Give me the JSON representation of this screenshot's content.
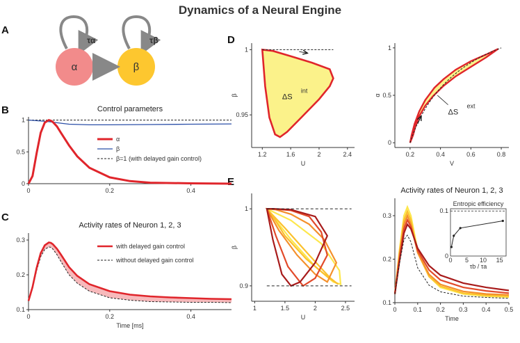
{
  "figure_title": "Dynamics of a Neural Engine",
  "panel_labels": {
    "A": "A",
    "B": "B",
    "C": "C",
    "D": "D",
    "E": "E"
  },
  "diagram_A": {
    "node_alpha": "α",
    "node_beta": "β",
    "tau_alpha": "τα",
    "tau_beta": "τβ",
    "colors": {
      "alpha": "#f28b8b",
      "beta": "#fdc72f",
      "arrow": "#888888"
    }
  },
  "chart_data": [
    {
      "id": "B",
      "type": "line",
      "title": "Control parameters",
      "xlim": [
        0,
        0.5
      ],
      "ylim": [
        0,
        1.05
      ],
      "xticks": [
        "0",
        "0.2",
        "0.4"
      ],
      "yticks": [
        "0",
        "0.5",
        "1"
      ],
      "legend_position": "center-right",
      "series": [
        {
          "name": "α",
          "color": "#e0252b",
          "x": [
            0,
            0.01,
            0.02,
            0.03,
            0.04,
            0.05,
            0.055,
            0.06,
            0.07,
            0.08,
            0.1,
            0.12,
            0.15,
            0.2,
            0.25,
            0.3,
            0.4,
            0.5
          ],
          "y": [
            0,
            0.12,
            0.48,
            0.8,
            0.96,
            1.0,
            0.99,
            0.97,
            0.9,
            0.8,
            0.6,
            0.43,
            0.25,
            0.1,
            0.04,
            0.015,
            0.005,
            0
          ]
        },
        {
          "name": "β",
          "color": "#2b4fa8",
          "x": [
            0,
            0.03,
            0.05,
            0.08,
            0.1,
            0.15,
            0.2,
            0.3,
            0.4,
            0.5
          ],
          "y": [
            1.0,
            0.985,
            0.975,
            0.95,
            0.935,
            0.925,
            0.925,
            0.93,
            0.935,
            0.94
          ]
        },
        {
          "name": "β=1 (with delayed gain control)",
          "color": "#222222",
          "x": [
            0,
            0.5
          ],
          "y": [
            1.0,
            1.0
          ]
        }
      ]
    },
    {
      "id": "C",
      "type": "line",
      "title": "Activity rates of Neuron 1, 2, 3",
      "xlabel": "Time [ms]",
      "xlim": [
        0,
        0.5
      ],
      "ylim": [
        0.1,
        0.32
      ],
      "xticks": [
        "0",
        "0.2",
        "0.4"
      ],
      "yticks": [
        "0.1",
        "0.2",
        "0.3"
      ],
      "series": [
        {
          "name": "with delayed gain control",
          "color": "#e0252b",
          "x": [
            0,
            0.01,
            0.02,
            0.03,
            0.04,
            0.05,
            0.055,
            0.06,
            0.07,
            0.08,
            0.1,
            0.12,
            0.15,
            0.2,
            0.25,
            0.3,
            0.35,
            0.4,
            0.45,
            0.5
          ],
          "y": [
            0.125,
            0.165,
            0.22,
            0.262,
            0.285,
            0.293,
            0.292,
            0.288,
            0.275,
            0.258,
            0.222,
            0.197,
            0.173,
            0.153,
            0.143,
            0.138,
            0.135,
            0.133,
            0.131,
            0.13
          ]
        },
        {
          "name": "without delayed gain control",
          "color": "#222222",
          "x": [
            0,
            0.01,
            0.02,
            0.03,
            0.04,
            0.05,
            0.055,
            0.06,
            0.07,
            0.08,
            0.1,
            0.12,
            0.15,
            0.2,
            0.25,
            0.3,
            0.35,
            0.4,
            0.45,
            0.5
          ],
          "y": [
            0.125,
            0.16,
            0.212,
            0.252,
            0.273,
            0.28,
            0.279,
            0.274,
            0.258,
            0.238,
            0.2,
            0.176,
            0.153,
            0.134,
            0.127,
            0.123,
            0.122,
            0.121,
            0.121,
            0.12
          ]
        }
      ]
    },
    {
      "id": "D-left",
      "type": "line",
      "xlabel": "U",
      "ylabel": "β",
      "xlim": [
        1.05,
        2.5
      ],
      "ylim": [
        0.925,
        1.005
      ],
      "xticks": [
        "1.2",
        "1.6",
        "2",
        "2.4"
      ],
      "yticks": [
        "0.95",
        "1"
      ],
      "annotation": "ΔS",
      "annotation_sup": "int",
      "series": [
        {
          "name": "cycle",
          "color": "#e0252b",
          "x": [
            1.2,
            1.35,
            1.6,
            1.9,
            2.15,
            2.2,
            2.15,
            2.0,
            1.75,
            1.55,
            1.45,
            1.38,
            1.3,
            1.24,
            1.2
          ],
          "y": [
            1.0,
            0.999,
            0.995,
            0.99,
            0.985,
            0.978,
            0.972,
            0.962,
            0.948,
            0.937,
            0.933,
            0.935,
            0.948,
            0.972,
            1.0
          ]
        },
        {
          "name": "β=1",
          "color": "#222222",
          "x": [
            1.2,
            2.2
          ],
          "y": [
            1.0,
            1.0
          ]
        }
      ]
    },
    {
      "id": "D-right",
      "type": "line",
      "xlabel": "V",
      "ylabel": "α",
      "xlim": [
        0.1,
        0.85
      ],
      "ylim": [
        -0.05,
        1.05
      ],
      "xticks": [
        "0.2",
        "0.4",
        "0.6",
        "0.8"
      ],
      "yticks": [
        "0",
        "0.5",
        "1"
      ],
      "annotation": "ΔS",
      "annotation_sup": "ext",
      "series": [
        {
          "name": "upper",
          "color": "#e0252b",
          "x": [
            0.2,
            0.21,
            0.23,
            0.26,
            0.3,
            0.36,
            0.42,
            0.5,
            0.6,
            0.7,
            0.78
          ],
          "y": [
            0.0,
            0.08,
            0.2,
            0.33,
            0.45,
            0.58,
            0.67,
            0.77,
            0.86,
            0.93,
            0.99
          ]
        },
        {
          "name": "lower",
          "color": "#e0252b",
          "x": [
            0.78,
            0.7,
            0.6,
            0.5,
            0.42,
            0.35,
            0.3,
            0.26,
            0.235,
            0.22,
            0.2
          ],
          "y": [
            0.99,
            0.9,
            0.8,
            0.7,
            0.6,
            0.49,
            0.39,
            0.28,
            0.17,
            0.08,
            0.0
          ]
        }
      ]
    },
    {
      "id": "E-left",
      "type": "line",
      "xlabel": "U",
      "ylabel": "β",
      "xlim": [
        0.95,
        2.65
      ],
      "ylim": [
        0.88,
        1.02
      ],
      "xticks": [
        "1",
        "1.5",
        "2",
        "2.5"
      ],
      "yticks": [
        "0.9",
        "1"
      ],
      "series": [
        {
          "name": "c1",
          "color": "#fde74c",
          "x": [
            1.2,
            1.6,
            2.1,
            2.4,
            2.42,
            2.3,
            2.0,
            1.6,
            1.3,
            1.2
          ],
          "y": [
            1.0,
            0.985,
            0.955,
            0.92,
            0.902,
            0.905,
            0.925,
            0.96,
            0.99,
            1.0
          ]
        },
        {
          "name": "c2",
          "color": "#fbc12e",
          "x": [
            1.2,
            1.5,
            1.9,
            2.25,
            2.38,
            2.2,
            1.85,
            1.5,
            1.3,
            1.2
          ],
          "y": [
            1.0,
            0.975,
            0.94,
            0.91,
            0.902,
            0.912,
            0.935,
            0.965,
            0.99,
            1.0
          ]
        },
        {
          "name": "c3",
          "color": "#f4902b",
          "x": [
            1.2,
            1.4,
            1.7,
            2.0,
            2.2,
            2.35,
            2.15,
            1.9,
            1.6,
            1.35,
            1.2
          ],
          "y": [
            1.0,
            0.972,
            0.94,
            0.915,
            0.905,
            0.93,
            0.96,
            0.98,
            0.993,
            0.999,
            1.0
          ]
        },
        {
          "name": "c4",
          "color": "#e24a2a",
          "x": [
            1.2,
            1.35,
            1.55,
            1.8,
            2.0,
            2.2,
            2.1,
            1.9,
            1.6,
            1.3,
            1.2
          ],
          "y": [
            1.0,
            0.965,
            0.925,
            0.9,
            0.91,
            0.94,
            0.97,
            0.99,
            0.998,
            1.0,
            1.0
          ]
        },
        {
          "name": "c5",
          "color": "#a81b1b",
          "x": [
            1.2,
            1.3,
            1.45,
            1.6,
            1.75,
            2.0,
            2.2,
            2.0,
            1.6,
            1.3,
            1.2
          ],
          "y": [
            1.0,
            0.96,
            0.915,
            0.9,
            0.905,
            0.93,
            0.965,
            0.99,
            0.999,
            1.0,
            1.0
          ]
        },
        {
          "name": "β=1",
          "color": "#222222",
          "x": [
            1.2,
            2.6
          ],
          "y": [
            1.0,
            1.0
          ]
        },
        {
          "name": "β=0.9",
          "color": "#222222",
          "x": [
            1.2,
            2.6
          ],
          "y": [
            0.9,
            0.9
          ]
        }
      ]
    },
    {
      "id": "E-right",
      "type": "line",
      "title": "Activity rates of Neuron 1, 2, 3",
      "xlabel": "Time",
      "xlim": [
        0,
        0.5
      ],
      "ylim": [
        0.1,
        0.34
      ],
      "xticks": [
        "0",
        "0.1",
        "0.2",
        "0.3",
        "0.4",
        "0.5"
      ],
      "yticks": [
        "0.1",
        "0.2",
        "0.3"
      ],
      "series": [
        {
          "name": "c1",
          "color": "#fde74c",
          "x": [
            0,
            0.02,
            0.04,
            0.055,
            0.07,
            0.1,
            0.15,
            0.2,
            0.3,
            0.4,
            0.5
          ],
          "y": [
            0.12,
            0.22,
            0.3,
            0.32,
            0.3,
            0.22,
            0.16,
            0.135,
            0.12,
            0.115,
            0.113
          ]
        },
        {
          "name": "c2",
          "color": "#fbc12e",
          "x": [
            0,
            0.02,
            0.04,
            0.055,
            0.07,
            0.1,
            0.15,
            0.2,
            0.3,
            0.4,
            0.5
          ],
          "y": [
            0.12,
            0.215,
            0.29,
            0.31,
            0.29,
            0.215,
            0.16,
            0.138,
            0.122,
            0.117,
            0.115
          ]
        },
        {
          "name": "c3",
          "color": "#f4902b",
          "x": [
            0,
            0.02,
            0.04,
            0.055,
            0.07,
            0.1,
            0.15,
            0.2,
            0.3,
            0.4,
            0.5
          ],
          "y": [
            0.12,
            0.21,
            0.28,
            0.3,
            0.28,
            0.215,
            0.165,
            0.142,
            0.126,
            0.12,
            0.118
          ]
        },
        {
          "name": "c4",
          "color": "#e24a2a",
          "x": [
            0,
            0.02,
            0.04,
            0.055,
            0.07,
            0.1,
            0.15,
            0.2,
            0.3,
            0.4,
            0.5
          ],
          "y": [
            0.12,
            0.2,
            0.27,
            0.29,
            0.275,
            0.22,
            0.175,
            0.152,
            0.135,
            0.127,
            0.122
          ]
        },
        {
          "name": "c5",
          "color": "#a81b1b",
          "x": [
            0,
            0.02,
            0.04,
            0.055,
            0.07,
            0.1,
            0.15,
            0.2,
            0.3,
            0.4,
            0.5
          ],
          "y": [
            0.12,
            0.195,
            0.26,
            0.28,
            0.27,
            0.225,
            0.185,
            0.163,
            0.145,
            0.135,
            0.128
          ]
        },
        {
          "name": "no delay",
          "color": "#222222",
          "x": [
            0,
            0.02,
            0.04,
            0.055,
            0.07,
            0.1,
            0.15,
            0.2,
            0.3,
            0.4,
            0.5
          ],
          "y": [
            0.12,
            0.19,
            0.245,
            0.255,
            0.24,
            0.18,
            0.14,
            0.125,
            0.115,
            0.112,
            0.11
          ]
        }
      ],
      "inset": {
        "title": "Entropic efficiency",
        "xlabel": "τb / τa",
        "xlim": [
          0,
          17
        ],
        "ylim": [
          0,
          0.105
        ],
        "xticks": [
          "0",
          "5",
          "10",
          "15"
        ],
        "yticks": [
          "0",
          "0.1"
        ],
        "x": [
          0.3,
          1,
          3,
          16
        ],
        "y": [
          0.02,
          0.045,
          0.062,
          0.078
        ]
      }
    }
  ]
}
